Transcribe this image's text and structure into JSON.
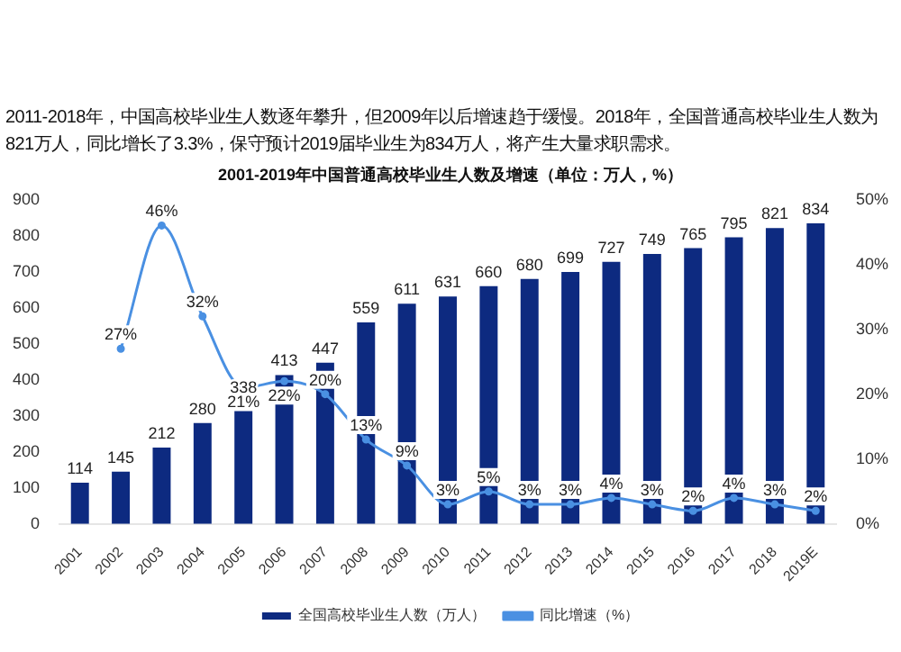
{
  "chart_data": {
    "type": "bar",
    "subtitle": "2011-2018年，中国高校毕业生人数逐年攀升，但2009年以后增速趋于缓慢。2018年，全国普通高校毕业生人数为821万人，同比增长了3.3%，保守预计2019届毕业生为834万人，将产生大量求职需求。",
    "title": "2001-2019年中国普通高校毕业生人数及增速（单位：万人，%）",
    "categories": [
      "2001",
      "2002",
      "2003",
      "2004",
      "2005",
      "2006",
      "2007",
      "2008",
      "2009",
      "2010",
      "2011",
      "2012",
      "2013",
      "2014",
      "2015",
      "2016",
      "2017",
      "2018",
      "2019E"
    ],
    "series": [
      {
        "name": "全国高校毕业生人数（万人）",
        "color": "#0d2a80",
        "values": [
          114,
          145,
          212,
          280,
          338,
          413,
          447,
          559,
          611,
          631,
          660,
          680,
          699,
          727,
          749,
          765,
          795,
          821,
          834
        ],
        "value_labels": [
          "114",
          "145",
          "212",
          "280",
          "338",
          "413",
          "447",
          "559",
          "611",
          "631",
          "660",
          "680",
          "699",
          "727",
          "749",
          "765",
          "795",
          "821",
          "834"
        ]
      },
      {
        "name": "同比增速（%）",
        "type": "line",
        "axis": "y2",
        "color": "#4a90e2",
        "values": [
          null,
          27,
          46,
          32,
          21,
          22,
          20,
          13,
          9,
          3,
          5,
          3,
          3,
          4,
          3,
          2,
          4,
          3,
          2
        ],
        "value_labels": [
          null,
          "27%",
          "46%",
          "32%",
          "21%",
          "22%",
          "20%",
          "13%",
          "9%",
          "3%",
          "5%",
          "3%",
          "3%",
          "4%",
          "3%",
          "2%",
          "4%",
          "3%",
          "2%"
        ]
      }
    ],
    "ylim": [
      0,
      900
    ],
    "yticks": [
      0,
      100,
      200,
      300,
      400,
      500,
      600,
      700,
      800,
      900
    ],
    "y2lim": [
      0,
      50
    ],
    "y2ticks": [
      {
        "value": 0,
        "label": "0%"
      },
      {
        "value": 10,
        "label": "10%"
      },
      {
        "value": 20,
        "label": "20%"
      },
      {
        "value": 30,
        "label": "30%"
      },
      {
        "value": 40,
        "label": "40%"
      },
      {
        "value": 50,
        "label": "50%"
      }
    ],
    "grid": false,
    "legend": "bottom",
    "marker": "circle"
  }
}
